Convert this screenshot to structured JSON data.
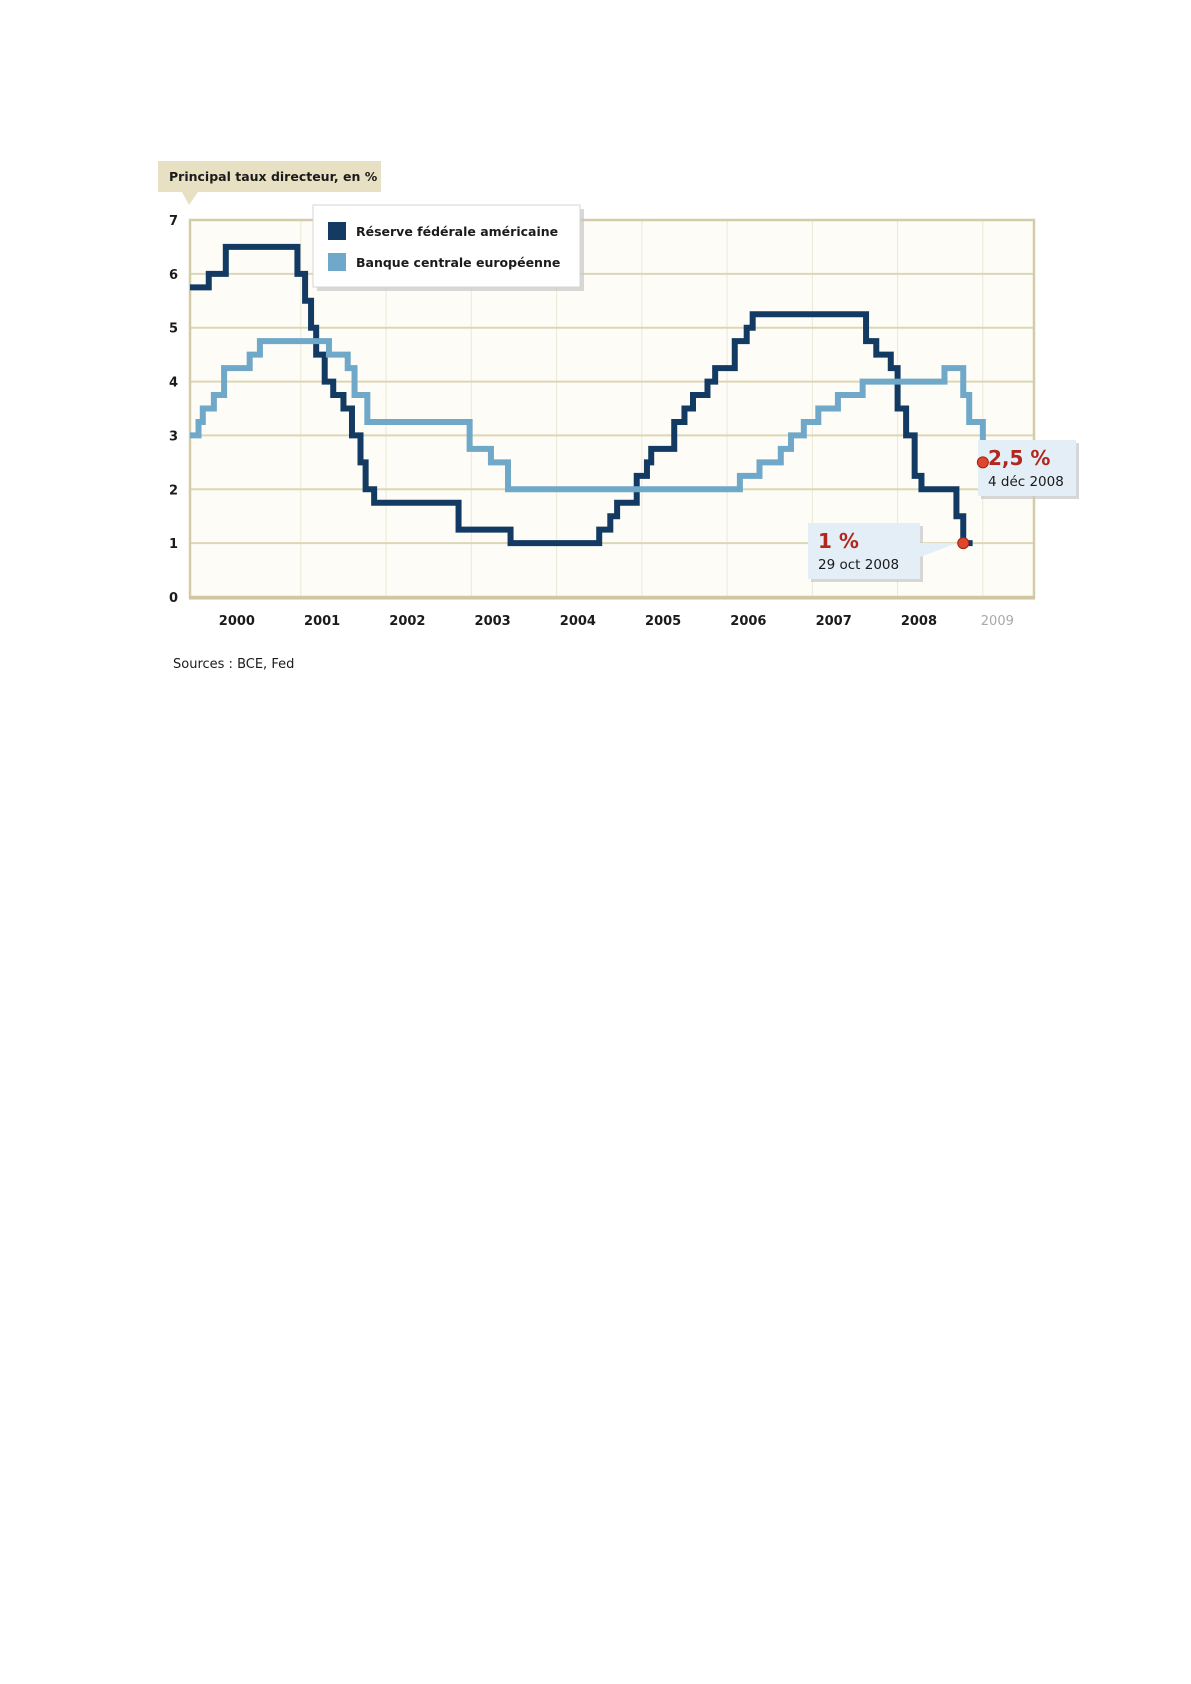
{
  "chart_data": {
    "type": "line",
    "step": true,
    "ylabel": "Principal taux directeur, en %",
    "ylim": [
      0,
      7
    ],
    "yticks": [
      "0",
      "1",
      "2",
      "3",
      "4",
      "5",
      "6",
      "7"
    ],
    "xlim": [
      1999.7,
      2009.6
    ],
    "xticks": [
      {
        "label": "2000",
        "value": 2000.25,
        "muted": false
      },
      {
        "label": "2001",
        "value": 2001.25,
        "muted": false
      },
      {
        "label": "2002",
        "value": 2002.25,
        "muted": false
      },
      {
        "label": "2003",
        "value": 2003.25,
        "muted": false
      },
      {
        "label": "2004",
        "value": 2004.25,
        "muted": false
      },
      {
        "label": "2005",
        "value": 2005.25,
        "muted": false
      },
      {
        "label": "2006",
        "value": 2006.25,
        "muted": false
      },
      {
        "label": "2007",
        "value": 2007.25,
        "muted": false
      },
      {
        "label": "2008",
        "value": 2008.25,
        "muted": false
      },
      {
        "label": "2009",
        "value": 2009.17,
        "muted": true
      }
    ],
    "grid": true,
    "legend": "top-left",
    "series": [
      {
        "name": "Réserve fédérale américaine",
        "color": "#133a63",
        "points": [
          [
            1999.7,
            5.75
          ],
          [
            1999.92,
            6.0
          ],
          [
            2000.12,
            6.5
          ],
          [
            2000.96,
            6.0
          ],
          [
            2001.05,
            5.5
          ],
          [
            2001.12,
            5.0
          ],
          [
            2001.18,
            4.5
          ],
          [
            2001.28,
            4.0
          ],
          [
            2001.38,
            3.75
          ],
          [
            2001.5,
            3.5
          ],
          [
            2001.6,
            3.0
          ],
          [
            2001.7,
            2.5
          ],
          [
            2001.76,
            2.0
          ],
          [
            2001.86,
            1.75
          ],
          [
            2002.85,
            1.25
          ],
          [
            2003.46,
            1.0
          ],
          [
            2004.5,
            1.25
          ],
          [
            2004.63,
            1.5
          ],
          [
            2004.71,
            1.75
          ],
          [
            2004.94,
            2.25
          ],
          [
            2005.06,
            2.5
          ],
          [
            2005.11,
            2.75
          ],
          [
            2005.38,
            3.25
          ],
          [
            2005.5,
            3.5
          ],
          [
            2005.6,
            3.75
          ],
          [
            2005.77,
            4.0
          ],
          [
            2005.86,
            4.25
          ],
          [
            2006.09,
            4.75
          ],
          [
            2006.23,
            5.0
          ],
          [
            2006.3,
            5.25
          ],
          [
            2007.63,
            4.75
          ],
          [
            2007.75,
            4.5
          ],
          [
            2007.92,
            4.25
          ],
          [
            2008.0,
            3.5
          ],
          [
            2008.1,
            3.0
          ],
          [
            2008.2,
            2.25
          ],
          [
            2008.28,
            2.0
          ],
          [
            2008.69,
            1.5
          ],
          [
            2008.77,
            1.0
          ],
          [
            2008.88,
            1.0
          ]
        ]
      },
      {
        "name": "Banque centrale européenne",
        "color": "#6fa8c8",
        "points": [
          [
            1999.7,
            3.0
          ],
          [
            1999.8,
            3.25
          ],
          [
            1999.85,
            3.5
          ],
          [
            1999.98,
            3.75
          ],
          [
            2000.1,
            4.25
          ],
          [
            2000.4,
            4.5
          ],
          [
            2000.52,
            4.75
          ],
          [
            2001.33,
            4.5
          ],
          [
            2001.55,
            4.25
          ],
          [
            2001.63,
            3.75
          ],
          [
            2001.78,
            3.25
          ],
          [
            2002.98,
            2.75
          ],
          [
            2003.23,
            2.5
          ],
          [
            2003.43,
            2.0
          ],
          [
            2006.15,
            2.25
          ],
          [
            2006.38,
            2.5
          ],
          [
            2006.63,
            2.75
          ],
          [
            2006.75,
            3.0
          ],
          [
            2006.9,
            3.25
          ],
          [
            2007.07,
            3.5
          ],
          [
            2007.3,
            3.75
          ],
          [
            2007.59,
            4.0
          ],
          [
            2008.55,
            4.25
          ],
          [
            2008.77,
            3.75
          ],
          [
            2008.84,
            3.25
          ],
          [
            2009.0,
            2.5
          ],
          [
            2009.0,
            2.5
          ]
        ]
      }
    ],
    "annotations": [
      {
        "value_label": "2,5 %",
        "date_label": "4 déc 2008",
        "x": 2009.0,
        "y": 2.5,
        "series": 1
      },
      {
        "value_label": "1 %",
        "date_label": "29 oct 2008",
        "x": 2008.77,
        "y": 1.0,
        "series": 0
      }
    ],
    "source": "Sources : BCE, Fed"
  }
}
